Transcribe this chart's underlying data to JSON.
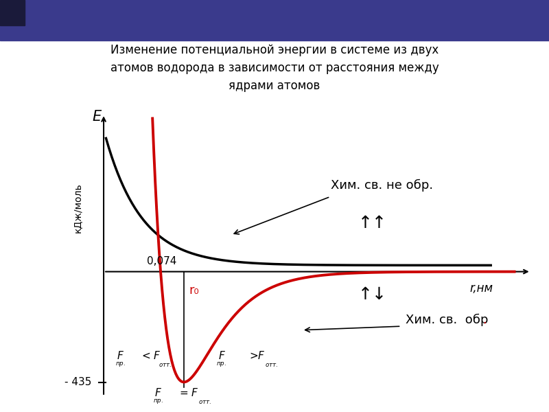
{
  "title": "Изменение потенциальной энергии в системе из двух\nатомов водорода в зависимости от расстояния между\nядрами атомов",
  "ylabel": "кДж/моль",
  "xlabel_e": "E",
  "xlabel_r": "r,нм",
  "r0_label": "r₀",
  "label_074": "0,074",
  "label_minus435": "- 435",
  "text_not_formed": "Хим. св. не обр.",
  "text_formed_black": "Хим. св.  обр",
  "text_formed_dot": ".",
  "arrow_up_up": "↑↑",
  "arrow_up_down": "↑↓",
  "f_lt": "F",
  "f_sub_pr": "пр.",
  "f_lt_sign": " < ",
  "f_gt_sign": " >",
  "f_otт": "F",
  "f_sub_ott": "отт.",
  "f_eq_sign": " = ",
  "header_bar_color": "#3a3a8c",
  "header_square_color": "#1a1a3a",
  "background_color": "#ffffff",
  "curve_black_color": "#000000",
  "curve_red_color": "#cc0000",
  "axis_color": "#000000",
  "r0_color": "#cc0000",
  "xlim": [
    0,
    10
  ],
  "ylim": [
    -520,
    680
  ],
  "r0_x": 2.5,
  "axis_x": 0.8,
  "axis_y0": 0,
  "black_asymptote": 25,
  "red_asymptote": -60,
  "red_min": -435
}
